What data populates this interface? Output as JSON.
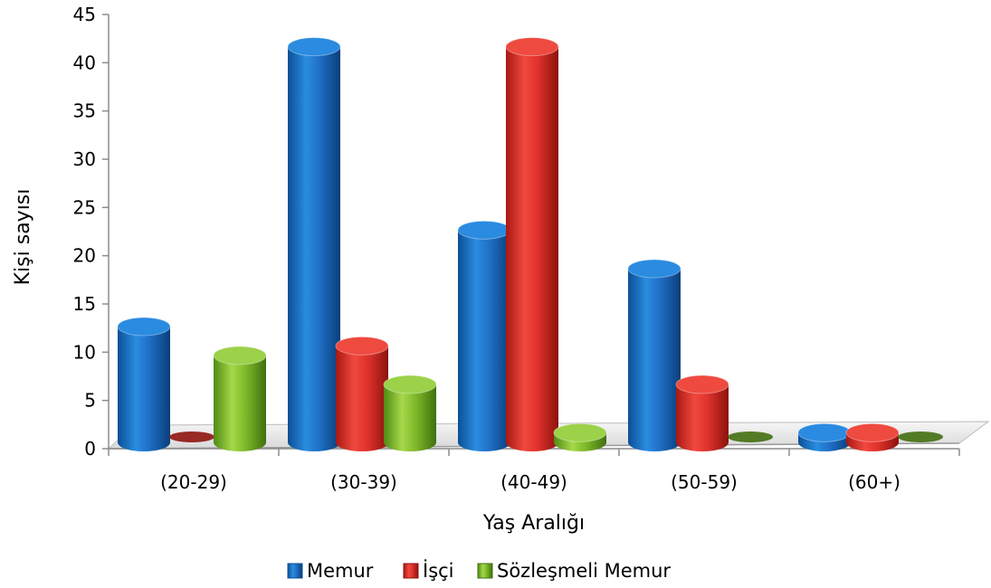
{
  "chart_data": {
    "type": "bar",
    "variant": "3d-cylinder",
    "title": "",
    "xlabel": "Yaş Aralığı",
    "ylabel": "Kişi sayısı",
    "categories": [
      "(20-29)",
      "(30-39)",
      "(40-49)",
      "(50-59)",
      "(60+)"
    ],
    "series": [
      {
        "name": "Memur",
        "values": [
          12,
          41,
          22,
          18,
          1
        ],
        "color": "#1f6fc6"
      },
      {
        "name": "İşçi",
        "values": [
          0,
          10,
          41,
          6,
          1
        ],
        "color": "#e0322c"
      },
      {
        "name": "Sözleşmeli Memur",
        "values": [
          9,
          6,
          1,
          0,
          0
        ],
        "color": "#7fba2a"
      }
    ],
    "ylim": [
      0,
      45
    ],
    "yticks": [
      0,
      5,
      10,
      15,
      20,
      25,
      30,
      35,
      40,
      45
    ],
    "grid": false,
    "legend": "bottom"
  }
}
